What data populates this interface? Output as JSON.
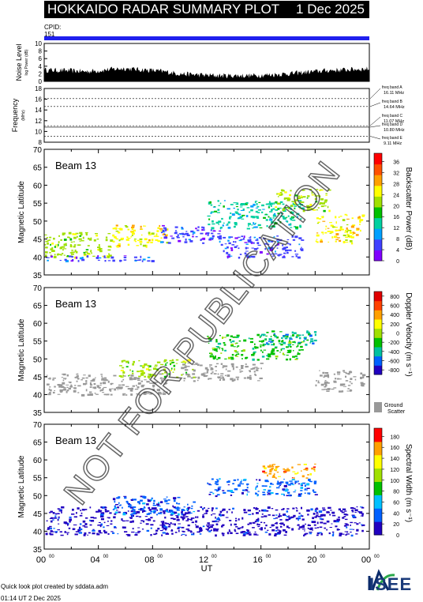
{
  "header": {
    "title": "HOKKAIDO RADAR SUMMARY PLOT",
    "date": "1 Dec 2025"
  },
  "cpid": {
    "label": "CPID:",
    "value": "151"
  },
  "footer": {
    "credit": "Quick look plot created by sddata.adm",
    "timestamp": "01:14 UT  2 Dec 2025",
    "logo_text": "ISEE"
  },
  "watermark": "NOT FOR PUBLICATION",
  "colors": {
    "cpid_bar": "#2020ee",
    "header_bg": "#000000",
    "ground_scatter": "#999999",
    "power_scale": [
      "#8000ff",
      "#4040ff",
      "#00a0ff",
      "#00d0a0",
      "#00c000",
      "#a0e000",
      "#ffff00",
      "#ffa000",
      "#ff5000",
      "#ff0000"
    ],
    "velocity_scale": [
      "#2000c0",
      "#0060ff",
      "#00c0a0",
      "#00c000",
      "#a0e000",
      "#ffff00",
      "#ffa000",
      "#ff4000",
      "#e00000"
    ],
    "width_scale": [
      "#2000c0",
      "#0060ff",
      "#00c0ff",
      "#00c000",
      "#a0e000",
      "#ffff00",
      "#ffa000",
      "#ff0000"
    ]
  },
  "chart_data": [
    {
      "type": "area",
      "name": "noise",
      "ylabel": "Noise Level",
      "ylabel_sub": "log Power (dB)",
      "ylim": [
        0,
        10
      ],
      "yticks": [
        "0",
        "2",
        "4",
        "6",
        "8",
        "10"
      ],
      "x_hours": [
        0,
        1,
        2,
        3,
        4,
        5,
        6,
        7,
        8,
        9,
        10,
        11,
        12,
        13,
        14,
        15,
        16,
        17,
        18,
        19,
        20,
        21,
        22,
        23,
        24
      ],
      "values": [
        3.0,
        2.9,
        2.8,
        2.6,
        2.8,
        3.2,
        3.4,
        3.1,
        2.9,
        2.5,
        2.0,
        1.8,
        1.6,
        1.5,
        1.5,
        1.5,
        1.6,
        1.8,
        2.0,
        2.3,
        2.6,
        2.9,
        3.0,
        3.2,
        3.3
      ]
    },
    {
      "type": "line",
      "name": "frequency",
      "ylabel": "Frequency",
      "ylabel_sub": "(MHz)",
      "ylim": [
        8,
        18
      ],
      "yticks": [
        "8",
        "10",
        "12",
        "14",
        "16",
        "18"
      ],
      "bands": [
        {
          "label": "freq band A",
          "value": "16.11 MHz",
          "mhz": 16.11,
          "dashed": true
        },
        {
          "label": "freq band B",
          "value": "14.64 MHz",
          "mhz": 14.64,
          "dashed": true
        },
        {
          "label": "freq band C",
          "value": "11.07 MHz",
          "mhz": 11.07,
          "dashed": true
        },
        {
          "label": "freq band D",
          "value": "10.80 MHz",
          "mhz": 10.8,
          "dashed": false
        },
        {
          "label": "freq band E",
          "value": "9.11 MHz",
          "mhz": 9.11,
          "dashed": true
        }
      ]
    },
    {
      "type": "heatmap",
      "name": "power",
      "beam": "Beam 13",
      "ylabel": "Magnetic Latitude",
      "ylim": [
        35,
        70
      ],
      "yticks": [
        "35",
        "40",
        "45",
        "50",
        "55",
        "60",
        "65",
        "70"
      ],
      "colorbar_label": "Backscatter Power (dB)",
      "colorbar_range": [
        0,
        39
      ],
      "colorbar_ticks": [
        "0",
        "4",
        "8",
        "12",
        "16",
        "20",
        "24",
        "28",
        "32",
        "36"
      ],
      "regions": [
        {
          "t0": 0.0,
          "t1": 5.0,
          "lat0": 40,
          "lat1": 47,
          "value": 22
        },
        {
          "t0": 0.0,
          "t1": 8.0,
          "lat0": 39,
          "lat1": 40.5,
          "value": 6
        },
        {
          "t0": 5.0,
          "t1": 9.0,
          "lat0": 43,
          "lat1": 49,
          "value": 26
        },
        {
          "t0": 8.5,
          "t1": 13.0,
          "lat0": 44,
          "lat1": 49,
          "value": 6
        },
        {
          "t0": 12.0,
          "t1": 19.0,
          "lat0": 48,
          "lat1": 56,
          "value": 14
        },
        {
          "t0": 17.0,
          "t1": 21.0,
          "lat0": 53,
          "lat1": 59,
          "value": 20
        },
        {
          "t0": 20.0,
          "t1": 23.5,
          "lat0": 44,
          "lat1": 52,
          "value": 26
        },
        {
          "t0": 13.0,
          "t1": 19.0,
          "lat0": 40,
          "lat1": 46,
          "value": 6
        }
      ]
    },
    {
      "type": "heatmap",
      "name": "velocity",
      "beam": "Beam 13",
      "ylabel": "Magnetic Latitude",
      "ylim": [
        35,
        70
      ],
      "yticks": [
        "35",
        "40",
        "45",
        "50",
        "55",
        "60",
        "65",
        "70"
      ],
      "colorbar_label": "Doppler Velocity (m s⁻¹)",
      "colorbar_range": [
        -900,
        900
      ],
      "colorbar_ticks": [
        "-800",
        "-600",
        "-400",
        "-200",
        "0",
        "200",
        "400",
        "600",
        "800"
      ],
      "ground_scatter_label": "Ground Scatter",
      "regions": [
        {
          "t0": 0.0,
          "t1": 9.0,
          "lat0": 40,
          "lat1": 46,
          "value": "gs"
        },
        {
          "t0": 5.5,
          "t1": 11.0,
          "lat0": 45,
          "lat1": 50,
          "value": 50
        },
        {
          "t0": 10.0,
          "t1": 16.0,
          "lat0": 44,
          "lat1": 49,
          "value": "gs"
        },
        {
          "t0": 12.0,
          "t1": 19.0,
          "lat0": 50,
          "lat1": 57,
          "value": -150
        },
        {
          "t0": 16.0,
          "t1": 20.0,
          "lat0": 54,
          "lat1": 58,
          "value": -350
        },
        {
          "t0": 20.0,
          "t1": 23.5,
          "lat0": 41,
          "lat1": 47,
          "value": "gs"
        }
      ]
    },
    {
      "type": "heatmap",
      "name": "width",
      "beam": "Beam 13",
      "ylabel": "Magnetic Latitude",
      "xlabel": "UT",
      "ylim": [
        35,
        70
      ],
      "yticks": [
        "35",
        "40",
        "45",
        "50",
        "55",
        "60",
        "65",
        "70"
      ],
      "xticks": [
        "00",
        "04",
        "08",
        "12",
        "16",
        "20",
        "00"
      ],
      "xtick_sup": "00",
      "colorbar_label": "Spectral Width (m s⁻¹)",
      "colorbar_range": [
        0,
        195
      ],
      "colorbar_ticks": [
        "0",
        "20",
        "40",
        "60",
        "80",
        "100",
        "120",
        "140",
        "160",
        "180"
      ],
      "regions": [
        {
          "t0": 0.0,
          "t1": 23.5,
          "lat0": 39,
          "lat1": 47,
          "value": 15
        },
        {
          "t0": 5.0,
          "t1": 11.0,
          "lat0": 45,
          "lat1": 50,
          "value": 40
        },
        {
          "t0": 12.0,
          "t1": 20.0,
          "lat0": 50,
          "lat1": 55,
          "value": 30
        },
        {
          "t0": 16.0,
          "t1": 20.0,
          "lat0": 55,
          "lat1": 59,
          "value": 170
        }
      ]
    }
  ]
}
